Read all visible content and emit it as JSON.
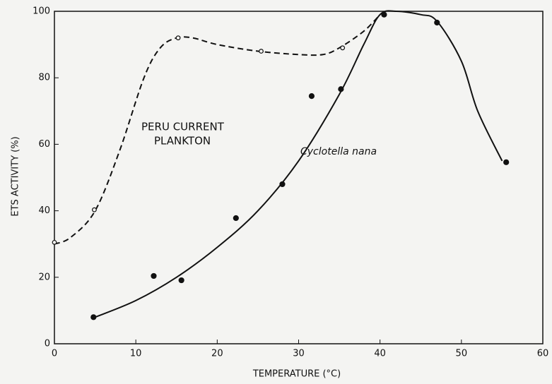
{
  "chart_data": {
    "type": "scatter",
    "xlabel": "TEMPERATURE (°C)",
    "ylabel": "ETS ACTIVITY (%)",
    "xlim": [
      0,
      60
    ],
    "xticks": [
      0,
      10,
      20,
      30,
      40,
      50,
      60
    ],
    "ylim": [
      0,
      100
    ],
    "yticks": [
      0,
      20,
      40,
      60,
      80,
      100
    ],
    "color": "#111111",
    "series": [
      {
        "name_lines": [
          "PERU CURRENT",
          "PLANKTON"
        ],
        "marker": "open",
        "line": "dashed",
        "x": [
          0,
          4.9,
          15.2,
          25.4,
          35.4
        ],
        "values": [
          30.5,
          40.3,
          92,
          88,
          89
        ],
        "curve_x": [
          0,
          2,
          5,
          8,
          11,
          13,
          15,
          17,
          20,
          25,
          30,
          33,
          35,
          38,
          40
        ],
        "curve_y": [
          30,
          32,
          40,
          58,
          80,
          89,
          92,
          92,
          90,
          88,
          87,
          87,
          89,
          94,
          99
        ]
      },
      {
        "name": "Cyclotella nana",
        "marker": "filled",
        "line": "solid",
        "x": [
          4.8,
          12.2,
          15.6,
          22.3,
          28,
          31.6,
          35.2,
          40.5,
          47,
          55.5
        ],
        "values": [
          8,
          20.4,
          19.1,
          37.8,
          48,
          74.5,
          76.6,
          99,
          96.6,
          54.6
        ],
        "curve_x": [
          5,
          10,
          15,
          20,
          25,
          30,
          35,
          38,
          40,
          42,
          45,
          47,
          50,
          52,
          55
        ],
        "curve_y": [
          8,
          13,
          20,
          29,
          40,
          55,
          75,
          90,
          99,
          100,
          99,
          97,
          85,
          70,
          55
        ]
      }
    ]
  }
}
